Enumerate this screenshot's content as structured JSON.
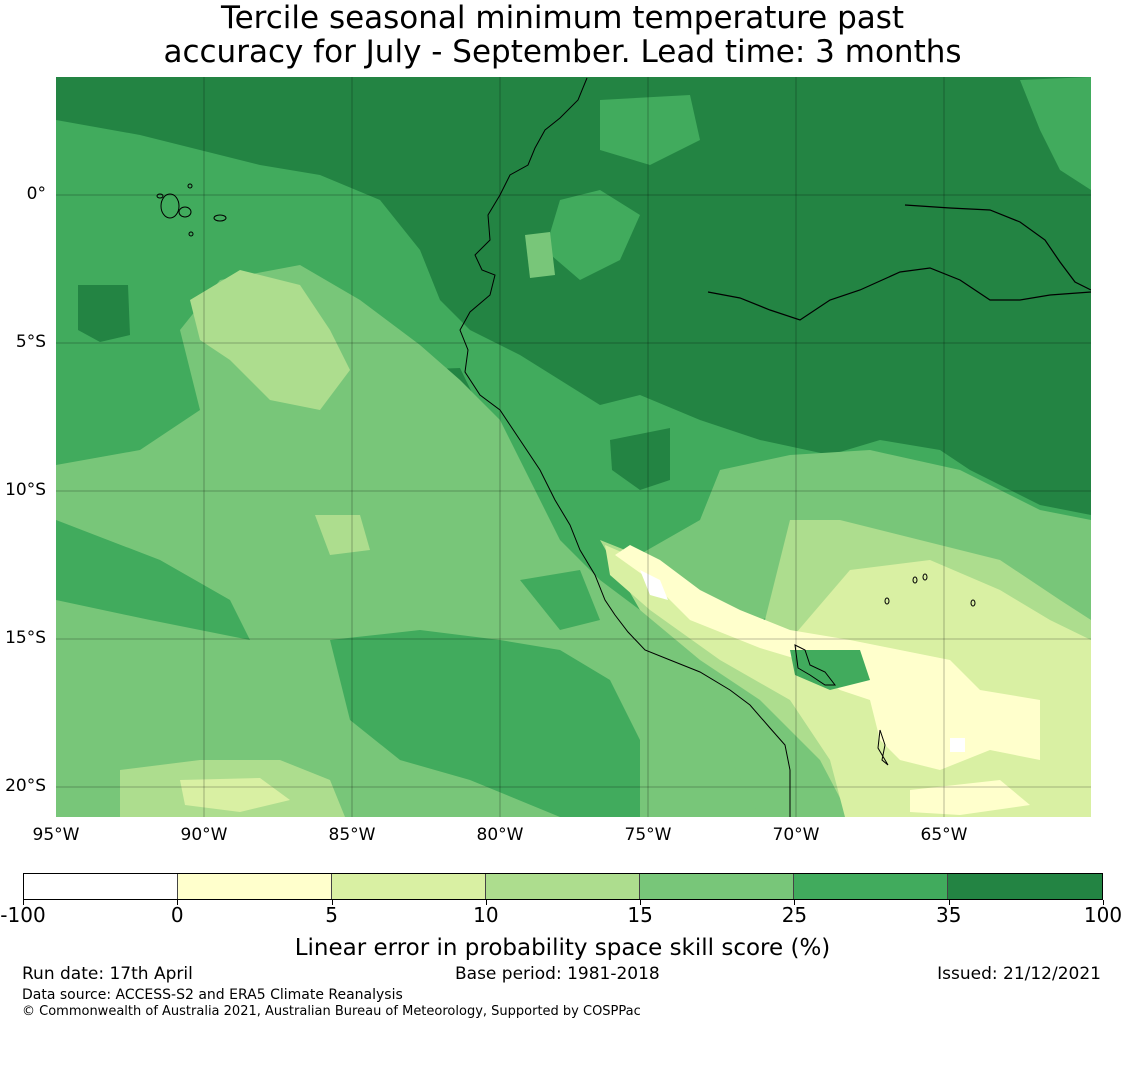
{
  "title": {
    "line1": "Tercile seasonal minimum temperature past",
    "line2": "accuracy for July - September. Lead time: 3 months"
  },
  "map": {
    "lon_range": [
      -95,
      -60
    ],
    "lat_range": [
      -21,
      4
    ],
    "lat_ticks": [
      {
        "value": 0,
        "label": "0°"
      },
      {
        "value": -5,
        "label": "5°S"
      },
      {
        "value": -10,
        "label": "10°S"
      },
      {
        "value": -15,
        "label": "15°S"
      },
      {
        "value": -20,
        "label": "20°S"
      }
    ],
    "lon_ticks": [
      {
        "value": -95,
        "label": "95°W"
      },
      {
        "value": -90,
        "label": "90°W"
      },
      {
        "value": -85,
        "label": "85°W"
      },
      {
        "value": -80,
        "label": "80°W"
      },
      {
        "value": -75,
        "label": "75°W"
      },
      {
        "value": -70,
        "label": "70°W"
      },
      {
        "value": -65,
        "label": "65°W"
      }
    ]
  },
  "colorbar": {
    "boundaries": [
      "-100",
      "0",
      "5",
      "10",
      "15",
      "25",
      "35",
      "100"
    ],
    "colors": [
      "#ffffff",
      "#ffffcc",
      "#d9f0a3",
      "#addd8e",
      "#78c679",
      "#41ab5d",
      "#238443"
    ],
    "label": "Linear error in probability space skill score (%)"
  },
  "footer": {
    "run_date": "Run date: 17th April",
    "base_period": "Base period: 1981-2018",
    "issued": "Issued: 21/12/2021",
    "data_source": "Data source: ACCESS-S2 and ERA5 Climate Reanalysis",
    "copyright": "© Commonwealth of Australia 2021, Australian Bureau of Meteorology, Supported by COSPPac"
  }
}
